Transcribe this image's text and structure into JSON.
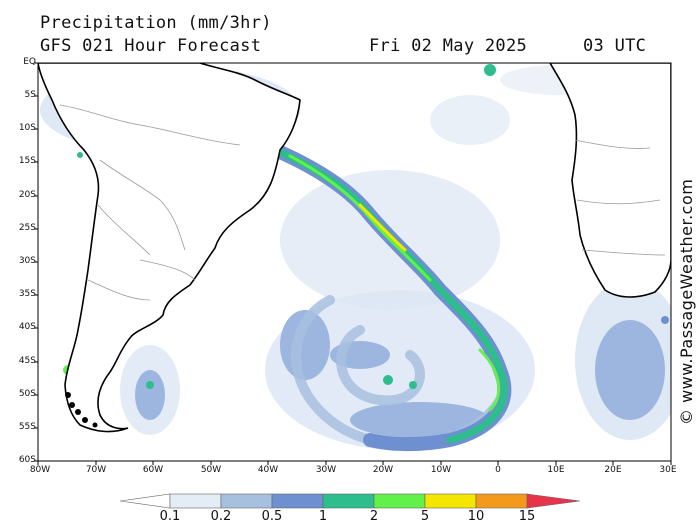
{
  "header": {
    "title": "Precipitation (mm/3hr)",
    "model": "GFS 021 Hour Forecast",
    "date": "Fri 02 May 2025",
    "time": "03 UTC"
  },
  "axes": {
    "latitude_labels": [
      "EQ",
      "5S",
      "10S",
      "15S",
      "20S",
      "25S",
      "30S",
      "35S",
      "40S",
      "45S",
      "50S",
      "55S",
      "60S"
    ],
    "longitude_labels": [
      "80W",
      "70W",
      "60W",
      "50W",
      "40W",
      "30W",
      "20W",
      "10W",
      "0",
      "10E",
      "20E",
      "30E"
    ]
  },
  "watermark": "© www.PassageWeather.com",
  "colorbar": {
    "labels": [
      "0.1",
      "0.2",
      "0.5",
      "1",
      "2",
      "5",
      "10",
      "15"
    ],
    "colors": [
      "#ffffff",
      "#e4ecf6",
      "#a8c0e0",
      "#6e8fd0",
      "#2ebd8c",
      "#62f04a",
      "#f5e600",
      "#f39a1c",
      "#e8344a"
    ]
  },
  "colors": {
    "ocean": "#ffffff",
    "land": "#ffffff",
    "coast": "#000000",
    "border": "#9a9a9a",
    "light_precip": "#dce6f4",
    "moderate_precip": "#9cb6df"
  }
}
